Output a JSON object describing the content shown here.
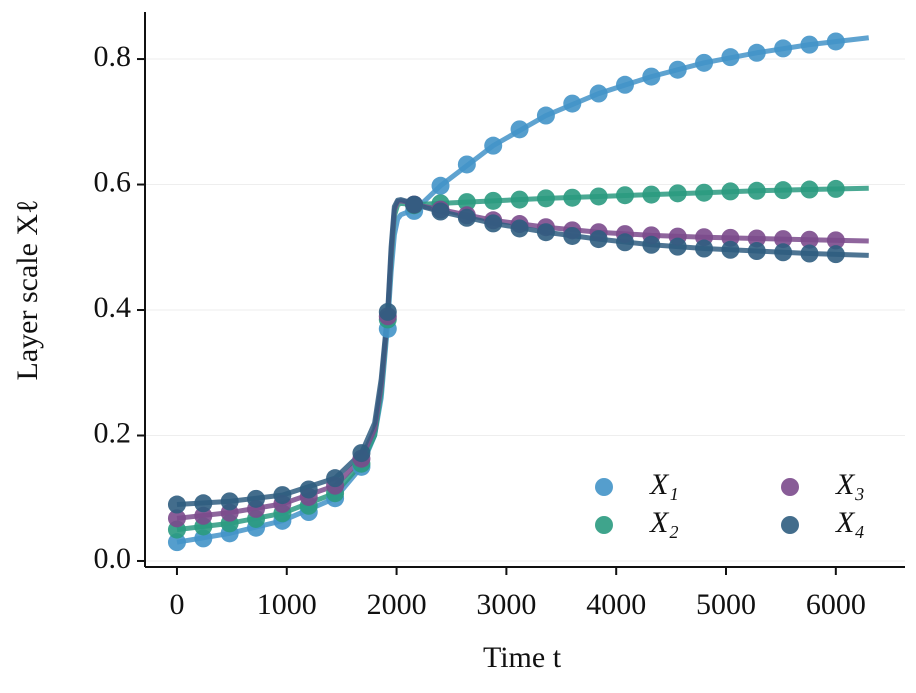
{
  "chart_data": {
    "type": "line",
    "xlabel": "Time t",
    "ylabel": "Layer scale Xℓ",
    "x": [
      0,
      240,
      480,
      720,
      960,
      1200,
      1440,
      1680,
      1920,
      2160,
      2400,
      2640,
      2880,
      3120,
      3360,
      3600,
      3840,
      4080,
      4320,
      4560,
      4800,
      5040,
      5280,
      5520,
      5760,
      6000
    ],
    "curve_x": [
      0,
      480,
      960,
      1440,
      1680,
      1800,
      1860,
      1920,
      1950,
      1980,
      2010,
      2040,
      2100,
      2160,
      2400,
      2880,
      3360,
      3840,
      4320,
      4800,
      5280,
      5760,
      6300
    ],
    "series": [
      {
        "name": "X₁",
        "color": "#4393c8",
        "values": [
          0.03,
          0.036,
          0.044,
          0.053,
          0.064,
          0.078,
          0.1,
          0.15,
          0.37,
          0.558,
          0.598,
          0.632,
          0.662,
          0.688,
          0.71,
          0.729,
          0.745,
          0.759,
          0.772,
          0.783,
          0.794,
          0.803,
          0.81,
          0.817,
          0.823,
          0.828
        ],
        "curve_values": [
          0.03,
          0.044,
          0.064,
          0.1,
          0.15,
          0.2,
          0.26,
          0.38,
          0.46,
          0.52,
          0.545,
          0.552,
          0.556,
          0.558,
          0.598,
          0.662,
          0.71,
          0.745,
          0.772,
          0.794,
          0.81,
          0.823,
          0.834
        ]
      },
      {
        "name": "X₂",
        "color": "#2a9a80",
        "values": [
          0.05,
          0.055,
          0.06,
          0.067,
          0.076,
          0.088,
          0.108,
          0.155,
          0.385,
          0.567,
          0.57,
          0.572,
          0.574,
          0.576,
          0.578,
          0.579,
          0.581,
          0.583,
          0.584,
          0.586,
          0.587,
          0.589,
          0.59,
          0.591,
          0.592,
          0.593
        ],
        "curve_values": [
          0.05,
          0.06,
          0.076,
          0.108,
          0.155,
          0.2,
          0.27,
          0.39,
          0.48,
          0.55,
          0.568,
          0.57,
          0.569,
          0.568,
          0.57,
          0.574,
          0.578,
          0.581,
          0.584,
          0.587,
          0.59,
          0.592,
          0.594
        ]
      },
      {
        "name": "X₃",
        "color": "#7b4a8c",
        "values": [
          0.068,
          0.072,
          0.077,
          0.083,
          0.091,
          0.102,
          0.12,
          0.163,
          0.39,
          0.568,
          0.56,
          0.551,
          0.543,
          0.537,
          0.532,
          0.527,
          0.524,
          0.521,
          0.519,
          0.517,
          0.516,
          0.515,
          0.514,
          0.513,
          0.512,
          0.511
        ],
        "curve_values": [
          0.068,
          0.077,
          0.091,
          0.12,
          0.163,
          0.21,
          0.28,
          0.395,
          0.49,
          0.56,
          0.573,
          0.574,
          0.572,
          0.568,
          0.56,
          0.543,
          0.532,
          0.524,
          0.519,
          0.516,
          0.514,
          0.512,
          0.51
        ]
      },
      {
        "name": "X₄",
        "color": "#2f5d80",
        "values": [
          0.09,
          0.092,
          0.095,
          0.099,
          0.105,
          0.114,
          0.132,
          0.172,
          0.397,
          0.568,
          0.557,
          0.547,
          0.538,
          0.53,
          0.524,
          0.518,
          0.513,
          0.508,
          0.504,
          0.501,
          0.498,
          0.496,
          0.494,
          0.492,
          0.49,
          0.489
        ],
        "curve_values": [
          0.09,
          0.095,
          0.105,
          0.132,
          0.172,
          0.22,
          0.29,
          0.4,
          0.5,
          0.565,
          0.575,
          0.576,
          0.573,
          0.568,
          0.557,
          0.538,
          0.524,
          0.513,
          0.504,
          0.498,
          0.494,
          0.49,
          0.487
        ]
      }
    ],
    "xlim": [
      -291,
      6630
    ],
    "ylim": [
      -0.0096,
      0.875
    ],
    "xticks": [
      0,
      1000,
      2000,
      3000,
      4000,
      5000,
      6000
    ],
    "yticks": [
      {
        "value": 0,
        "label": "0.0"
      },
      0.2,
      0.4,
      0.6,
      0.8
    ],
    "grid": true,
    "legend": "lower right"
  }
}
